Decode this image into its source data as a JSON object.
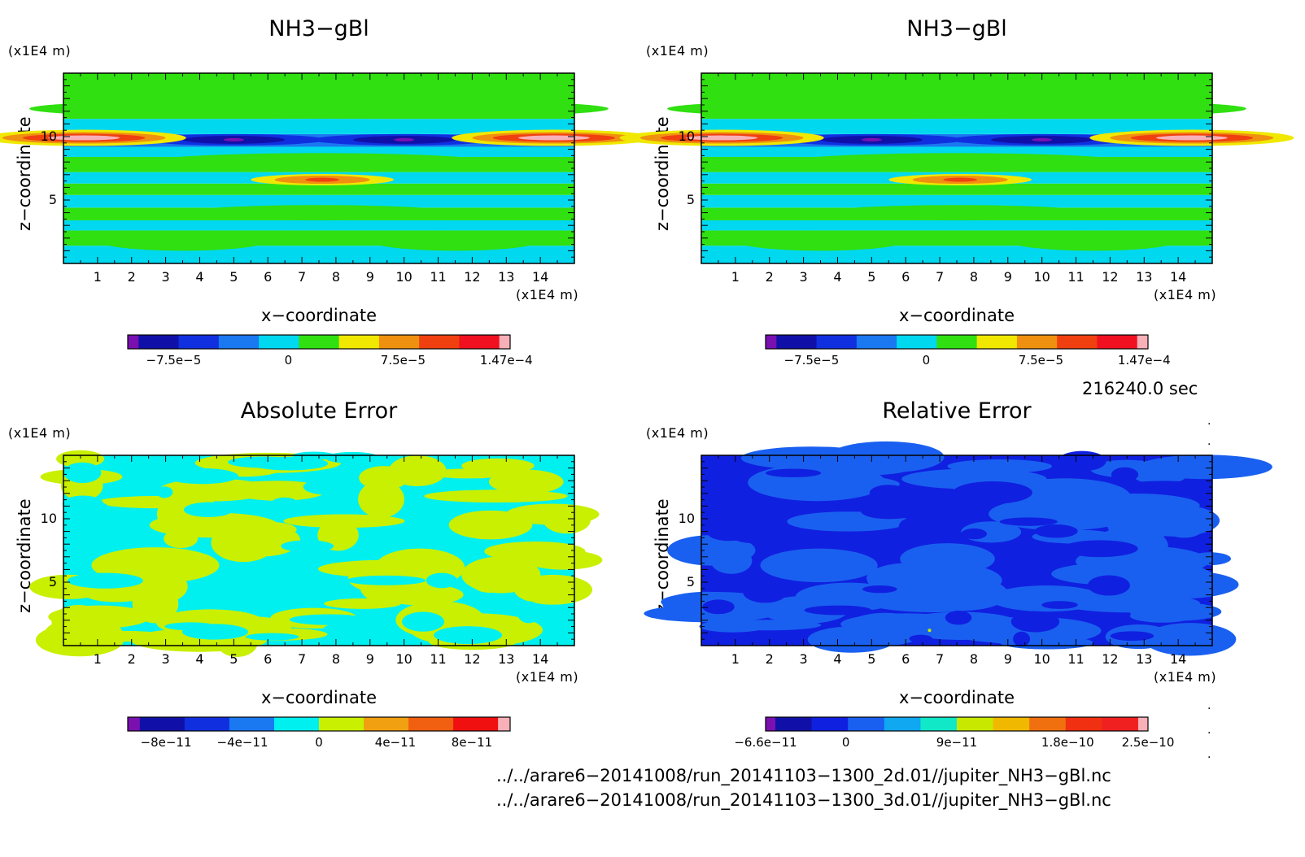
{
  "chart_data": [
    {
      "type": "heatmap",
      "title": "NH3−gBl",
      "xlabel": "x−coordinate",
      "ylabel": "z−coordinate",
      "x_unit": "(x1E4 m)",
      "y_unit": "(x1E4 m)",
      "xticks": [
        "1",
        "2",
        "3",
        "4",
        "5",
        "6",
        "7",
        "8",
        "9",
        "10",
        "11",
        "12",
        "13",
        "14"
      ],
      "yticks": [
        "5",
        "10"
      ],
      "xlim": [
        0,
        15
      ],
      "ylim": [
        0,
        15
      ],
      "colorbar": {
        "colors": [
          "#7a10b0",
          "#1010a8",
          "#1030e0",
          "#1a78f0",
          "#00d8f0",
          "#30e010",
          "#f0e800",
          "#f09010",
          "#f04010",
          "#f01020",
          "#f8b0b8"
        ],
        "ticks": [
          "−7.5e−5",
          "0",
          "7.5e−5",
          "1.47e−4"
        ]
      },
      "bands": [
        {
          "z_center": 9.7,
          "value": "low",
          "note": "dark blue band at z≈10"
        },
        {
          "z_center": 9.9,
          "value": "high",
          "note": "red/pink at edges x<3 and x>12"
        },
        {
          "z_center": 6.6,
          "value": "high",
          "note": "orange blob centered x≈7.6"
        }
      ]
    },
    {
      "type": "heatmap",
      "title": "NH3−gBl",
      "xlabel": "x−coordinate",
      "ylabel": "z−coordinate",
      "x_unit": "(x1E4 m)",
      "y_unit": "(x1E4 m)",
      "xticks": [
        "1",
        "2",
        "3",
        "4",
        "5",
        "6",
        "7",
        "8",
        "9",
        "10",
        "11",
        "12",
        "13",
        "14"
      ],
      "yticks": [
        "5",
        "10"
      ],
      "xlim": [
        0,
        15
      ],
      "ylim": [
        0,
        15
      ],
      "colorbar": {
        "colors": [
          "#7a10b0",
          "#1010a8",
          "#1030e0",
          "#1a78f0",
          "#00d8f0",
          "#30e010",
          "#f0e800",
          "#f09010",
          "#f04010",
          "#f01020",
          "#f8b0b8"
        ],
        "ticks": [
          "−7.5e−5",
          "0",
          "7.5e−5",
          "1.47e−4"
        ]
      }
    },
    {
      "type": "heatmap",
      "title": "Absolute Error",
      "xlabel": "x−coordinate",
      "ylabel": "z−coordinate",
      "x_unit": "(x1E4 m)",
      "y_unit": "(x1E4 m)",
      "xticks": [
        "1",
        "2",
        "3",
        "4",
        "5",
        "6",
        "7",
        "8",
        "9",
        "10",
        "11",
        "12",
        "13",
        "14"
      ],
      "yticks": [
        "5",
        "10"
      ],
      "xlim": [
        0,
        15
      ],
      "ylim": [
        0,
        15
      ],
      "colorbar": {
        "colors": [
          "#7a10b0",
          "#1010a8",
          "#1030e0",
          "#1a78f0",
          "#00f0f0",
          "#c8f000",
          "#f0a010",
          "#f06010",
          "#f01010",
          "#f8b0b8"
        ],
        "ticks": [
          "−8e−11",
          "−4e−11",
          "0",
          "4e−11",
          "8e−11"
        ]
      }
    },
    {
      "type": "heatmap",
      "title": "Relative Error",
      "xlabel": "x−coordinate",
      "ylabel": "z−coordinate",
      "x_unit": "(x1E4 m)",
      "y_unit": "(x1E4 m)",
      "xticks": [
        "1",
        "2",
        "3",
        "4",
        "5",
        "6",
        "7",
        "8",
        "9",
        "10",
        "11",
        "12",
        "13",
        "14"
      ],
      "yticks": [
        "5",
        "10"
      ],
      "xlim": [
        0,
        15
      ],
      "ylim": [
        0,
        15
      ],
      "colorbar": {
        "colors": [
          "#7a10b0",
          "#1010a8",
          "#1020e0",
          "#1a60f0",
          "#10a8f0",
          "#10e8c8",
          "#c8e800",
          "#f0b800",
          "#f07010",
          "#f03010",
          "#f02020",
          "#f8b0b8"
        ],
        "ticks": [
          "−6.6e−11",
          "0",
          "9e−11",
          "1.8e−10",
          "2.5e−10"
        ]
      }
    }
  ],
  "time_label": "216240.0 sec",
  "files": [
    "../../arare6−20141008/run_20141103−1300_2d.01//jupiter_NH3−gBl.nc",
    "../../arare6−20141008/run_20141103−1300_3d.01//jupiter_NH3−gBl.nc"
  ]
}
